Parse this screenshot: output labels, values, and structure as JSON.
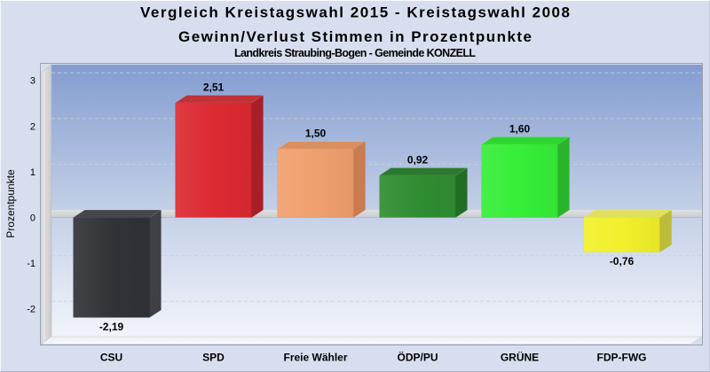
{
  "title": {
    "line1": "Vergleich Kreistagswahl 2015 - Kreistagswahl 2008",
    "line2": "Gewinn/Verlust Stimmen in Prozentpunkte",
    "subtitle": "Landkreis Straubing-Bogen - Gemeinde KONZELL"
  },
  "chart_data": {
    "type": "bar",
    "categories": [
      "CSU",
      "SPD",
      "Freie Wähler",
      "ÖDP/PU",
      "GRÜNE",
      "FDP-FWG"
    ],
    "values": [
      -2.19,
      2.51,
      1.5,
      0.92,
      1.6,
      -0.76
    ],
    "value_labels": [
      "-2,19",
      "2,51",
      "1,50",
      "0,92",
      "1,60",
      "-0,76"
    ],
    "title": "Vergleich Kreistagswahl 2015 - Kreistagswahl 2008 / Gewinn/Verlust Stimmen in Prozentpunkte",
    "subtitle": "Landkreis Straubing-Bogen - Gemeinde KONZELL",
    "xlabel": "",
    "ylabel": "Prozentpunkte",
    "yticks": [
      3,
      2,
      1,
      0,
      -1,
      -2
    ],
    "ylim": [
      -2.8,
      3.4
    ],
    "grid": "dashed horizontal gridlines",
    "legend": "none",
    "style": "3d bars",
    "bar_colors": [
      {
        "party": "CSU",
        "front": "#313338",
        "top": "#45474d",
        "side": "#3e4046"
      },
      {
        "party": "SPD",
        "front": "#dd2a33",
        "top": "#c23038",
        "side": "#a81f27"
      },
      {
        "party": "Freie Waehler",
        "front": "#efa06e",
        "top": "#d98f60",
        "side": "#c87c50"
      },
      {
        "party": "OeDP/PU",
        "front": "#2f8e31",
        "top": "#2a7a2e",
        "side": "#226d26"
      },
      {
        "party": "GRUENE",
        "front": "#36ee38",
        "top": "#2ed530",
        "side": "#29b42b"
      },
      {
        "party": "FDP-FWG",
        "front": "#f2f02b",
        "top": "#e0df5e",
        "side": "#bcbb3a"
      }
    ],
    "colors": {
      "page_background": "#d7dfef",
      "plot_gradient_top": "#839dd0",
      "plot_gradient_bottom": "#f1f4fa",
      "zero_band": "#cdced2",
      "grid_line": "#c9cfdb",
      "text": "#000000"
    }
  }
}
